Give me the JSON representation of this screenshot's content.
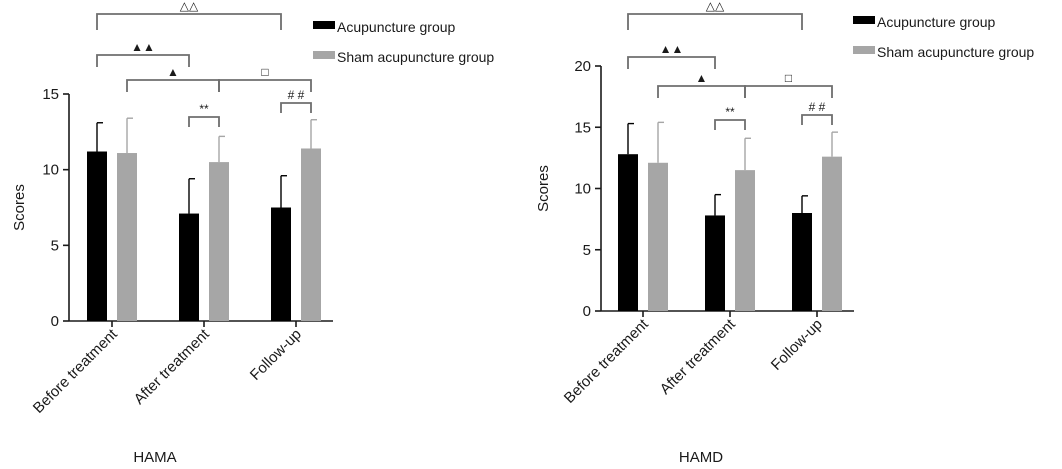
{
  "chart_data": [
    {
      "type": "bar",
      "title": "HAMA",
      "xlabel": "",
      "ylabel": "Scores",
      "ylim": [
        0,
        15
      ],
      "yticks": [
        0,
        5,
        10,
        15
      ],
      "categories": [
        "Before treatment",
        "After treatment",
        "Follow-up"
      ],
      "grid": false,
      "legend_position": "top-right",
      "series": [
        {
          "name": "Acupuncture group",
          "color": "#000000",
          "values": [
            11.2,
            7.1,
            7.5
          ],
          "error": [
            1.9,
            2.3,
            2.1
          ]
        },
        {
          "name": "Sham acupuncture group",
          "color": "#a6a6a6",
          "values": [
            11.1,
            10.5,
            11.4
          ],
          "error": [
            2.3,
            1.7,
            1.9
          ]
        }
      ],
      "annotations": [
        {
          "from": "acupuncture.before_treatment",
          "to": "acupuncture.follow_up",
          "label": "△△"
        },
        {
          "from": "acupuncture.before_treatment",
          "to": "acupuncture.after_treatment",
          "label": "▲▲"
        },
        {
          "from": "sham.before_treatment",
          "to": "sham.after_treatment",
          "label": "▲"
        },
        {
          "from": "sham.after_treatment",
          "to": "sham.follow_up",
          "label": "□"
        },
        {
          "from": "acupuncture.after_treatment",
          "to": "sham.after_treatment",
          "label": "**"
        },
        {
          "from": "acupuncture.follow_up",
          "to": "sham.follow_up",
          "label": "# #"
        }
      ]
    },
    {
      "type": "bar",
      "title": "HAMD",
      "xlabel": "",
      "ylabel": "Scores",
      "ylim": [
        0,
        20
      ],
      "yticks": [
        0,
        5,
        10,
        15,
        20
      ],
      "categories": [
        "Before treatment",
        "After treatment",
        "Follow-up"
      ],
      "grid": false,
      "legend_position": "top-right",
      "series": [
        {
          "name": "Acupuncture group",
          "color": "#000000",
          "values": [
            12.8,
            7.8,
            8.0
          ],
          "error": [
            2.5,
            1.7,
            1.4
          ]
        },
        {
          "name": "Sham acupuncture group",
          "color": "#a6a6a6",
          "values": [
            12.1,
            11.5,
            12.6
          ],
          "error": [
            3.3,
            2.6,
            2.0
          ]
        }
      ],
      "annotations": [
        {
          "from": "acupuncture.before_treatment",
          "to": "acupuncture.follow_up",
          "label": "△△"
        },
        {
          "from": "acupuncture.before_treatment",
          "to": "acupuncture.after_treatment",
          "label": "▲▲"
        },
        {
          "from": "sham.before_treatment",
          "to": "sham.after_treatment",
          "label": "▲"
        },
        {
          "from": "sham.after_treatment",
          "to": "sham.follow_up",
          "label": "□"
        },
        {
          "from": "acupuncture.after_treatment",
          "to": "sham.after_treatment",
          "label": "**"
        },
        {
          "from": "acupuncture.follow_up",
          "to": "sham.follow_up",
          "label": "# #"
        }
      ]
    }
  ]
}
